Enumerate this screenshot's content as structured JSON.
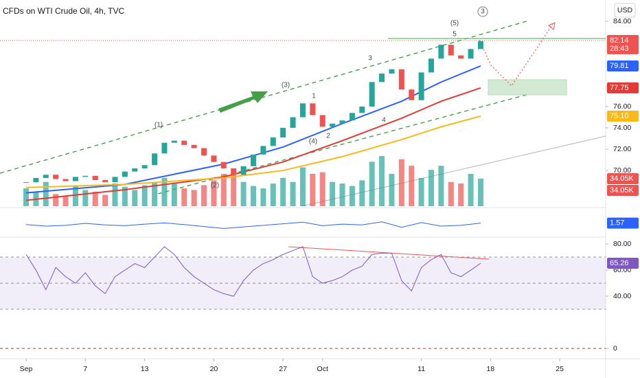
{
  "chart_data": {
    "type": "candlestick",
    "title": "CFDs on WTI Crude Oil, 4h, TVC",
    "currency": "USD",
    "x": [
      0,
      1,
      2,
      3,
      4,
      5,
      6,
      7,
      8,
      9,
      10,
      11,
      12,
      13,
      14,
      15,
      16,
      17,
      18,
      19,
      20,
      21,
      22,
      23,
      24,
      25,
      26,
      27,
      28,
      29,
      30,
      31,
      32,
      33,
      34,
      35,
      36,
      37,
      38,
      39,
      40,
      41,
      42,
      43,
      44,
      45,
      46
    ],
    "xlim": [
      -2.64,
      58.65
    ],
    "xticks": [
      {
        "value": 0,
        "label": "Sep"
      },
      {
        "value": 6,
        "label": "7"
      },
      {
        "value": 12,
        "label": "13"
      },
      {
        "value": 19,
        "label": "20"
      },
      {
        "value": 26,
        "label": "27"
      },
      {
        "value": 30,
        "label": "Oct"
      },
      {
        "value": 40,
        "label": "11"
      },
      {
        "value": 47,
        "label": "18"
      },
      {
        "value": 54,
        "label": "25"
      }
    ],
    "series": [
      {
        "name": "Close",
        "up_color": "#26a69a",
        "down_color": "#ef5350",
        "values": [
          68.9,
          69.3,
          69.6,
          69.2,
          69.0,
          69.4,
          69.5,
          69.1,
          68.9,
          69.4,
          69.9,
          70.2,
          70.5,
          71.6,
          72.6,
          72.8,
          72.4,
          72.1,
          71.4,
          70.8,
          70.2,
          69.6,
          70.4,
          71.5,
          72.3,
          73.1,
          74.0,
          75.0,
          76.3,
          75.2,
          74.1,
          74.4,
          74.7,
          75.4,
          76.0,
          78.3,
          79.1,
          79.5,
          77.6,
          76.6,
          79.2,
          80.5,
          81.8,
          80.8,
          80.5,
          81.4,
          82.14
        ],
        "value_labels": {
          "46": "82.14"
        },
        "countdown": "28:43"
      }
    ],
    "moving_averages": [
      {
        "color": "#2962ff",
        "x": [
          0,
          10,
          20,
          26,
          32,
          38,
          42,
          46
        ],
        "values": [
          67.9,
          68.7,
          70.6,
          72.2,
          74.4,
          76.5,
          78.3,
          79.81
        ],
        "last_label": "79.81"
      },
      {
        "color": "#e53935",
        "x": [
          0,
          10,
          20,
          26,
          32,
          38,
          42,
          46
        ],
        "values": [
          67.2,
          68.2,
          69.4,
          70.8,
          72.8,
          74.9,
          76.5,
          77.75
        ],
        "last_label": "77.75"
      },
      {
        "color": "#f9b917",
        "x": [
          0,
          10,
          20,
          26,
          32,
          38,
          42,
          46
        ],
        "values": [
          68.4,
          68.7,
          69.3,
          70.0,
          71.3,
          72.9,
          74.1,
          75.1
        ],
        "last_label": "75.10"
      }
    ],
    "ylim": [
      66.65,
      86
    ],
    "yticks": [
      {
        "value": 84,
        "label": "84.00"
      },
      {
        "value": 76,
        "label": "76.00"
      },
      {
        "value": 74,
        "label": "74.00"
      },
      {
        "value": 72,
        "label": "72.00"
      },
      {
        "value": 70,
        "label": "70.00"
      }
    ],
    "volume": {
      "values": [
        22,
        18,
        30,
        15,
        12,
        25,
        20,
        18,
        14,
        28,
        24,
        20,
        26,
        30,
        35,
        28,
        22,
        20,
        26,
        32,
        40,
        45,
        30,
        25,
        22,
        28,
        35,
        30,
        48,
        40,
        42,
        30,
        28,
        25,
        32,
        55,
        62,
        40,
        58,
        50,
        35,
        45,
        50,
        30,
        28,
        40,
        34.05
      ],
      "vlim": [
        0,
        255
      ],
      "last_label": "34.05K",
      "last_label_2": "34.05K"
    },
    "oscillator": {
      "color": "#2962ff",
      "x": [
        0,
        2,
        4,
        6,
        8,
        10,
        12,
        14,
        16,
        18,
        20,
        22,
        24,
        26,
        28,
        30,
        32,
        34,
        36,
        38,
        40,
        42,
        44,
        46
      ],
      "values": [
        1.2,
        0.8,
        1.0,
        1.5,
        1.1,
        0.9,
        1.3,
        1.6,
        1.2,
        0.7,
        0.2,
        0.6,
        1.0,
        1.4,
        1.8,
        0.9,
        1.3,
        1.1,
        1.9,
        0.5,
        1.7,
        0.8,
        1.0,
        1.57
      ],
      "ylim": [
        -2,
        5
      ],
      "last_label": "1.57"
    },
    "rsi": {
      "color": "#7e57c2",
      "values": [
        72,
        60,
        45,
        62,
        55,
        50,
        58,
        48,
        42,
        55,
        60,
        65,
        62,
        70,
        78,
        72,
        62,
        55,
        50,
        45,
        42,
        40,
        52,
        60,
        65,
        68,
        72,
        75,
        78,
        55,
        50,
        52,
        55,
        60,
        63,
        72,
        73,
        73,
        52,
        44,
        62,
        68,
        72,
        58,
        55,
        60,
        65.26
      ],
      "ylim": [
        -7.9,
        85.3
      ],
      "yticks": [
        {
          "value": 80,
          "label": "80.00"
        },
        {
          "value": 60,
          "label": "60.00"
        },
        {
          "value": 40,
          "label": "40.00"
        },
        {
          "value": 0,
          "label": "0"
        }
      ],
      "bands": [
        70,
        50,
        30
      ],
      "last_label": "65.26"
    },
    "waves": [
      "(1)",
      "(2)",
      "(3)",
      "(4)",
      "(5)",
      "1",
      "2",
      "3",
      "4",
      "5",
      "3"
    ]
  }
}
